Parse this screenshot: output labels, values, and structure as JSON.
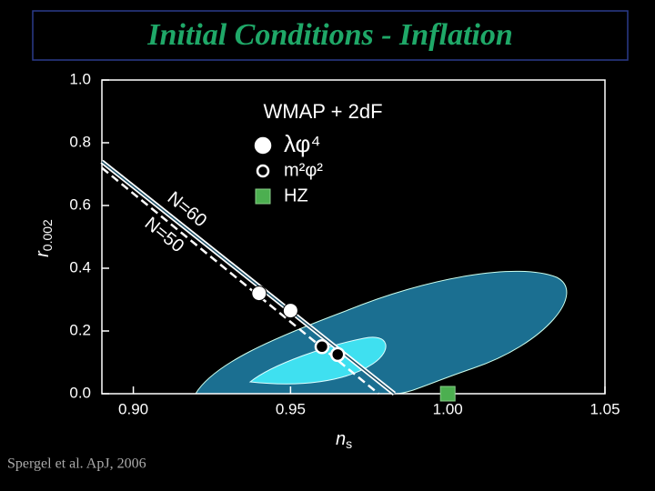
{
  "header": {
    "title": "Initial Conditions - Inflation"
  },
  "footer": {
    "citation": "Spergel et al. ApJ, 2006"
  },
  "chart_data": {
    "type": "scatter",
    "title": "WMAP + 2dF",
    "x_label": {
      "main": "n",
      "sub": "s"
    },
    "y_label": {
      "main": "r",
      "sub": "0.002"
    },
    "xlim": [
      0.89,
      1.05
    ],
    "ylim": [
      0,
      1
    ],
    "xticks": [
      {
        "value": 0.9,
        "label": "0.90"
      },
      {
        "value": 0.95,
        "label": "0.95"
      },
      {
        "value": 1.0,
        "label": "1.00"
      },
      {
        "value": 1.05,
        "label": "1.05"
      }
    ],
    "yticks": [
      {
        "value": 0,
        "label": "0.0"
      },
      {
        "value": 0.2,
        "label": "0.2"
      },
      {
        "value": 0.4,
        "label": "0.4"
      },
      {
        "value": 0.6,
        "label": "0.6"
      },
      {
        "value": 0.8,
        "label": "0.8"
      },
      {
        "value": 1.0,
        "label": "1.0"
      }
    ],
    "series": [
      {
        "name": "λφ⁴",
        "marker": "filled-circle",
        "color": "#ffffff",
        "x": [
          0.94,
          0.95
        ],
        "values": [
          0.32,
          0.265
        ]
      },
      {
        "name": "m²φ²",
        "marker": "open-circle",
        "color": "#000000",
        "x": [
          0.96,
          0.965
        ],
        "values": [
          0.15,
          0.125
        ]
      },
      {
        "name": "HZ",
        "marker": "square",
        "color": "#4caf50",
        "x": [
          1.0
        ],
        "values": [
          0.0
        ]
      }
    ],
    "lines": [
      {
        "name": "N=60",
        "style": "solid",
        "x": [
          0.89,
          0.983
        ],
        "values": [
          0.74,
          0
        ]
      },
      {
        "name": "N=50",
        "style": "dashed",
        "x": [
          0.89,
          0.978
        ],
        "values": [
          0.72,
          0
        ]
      }
    ]
  }
}
